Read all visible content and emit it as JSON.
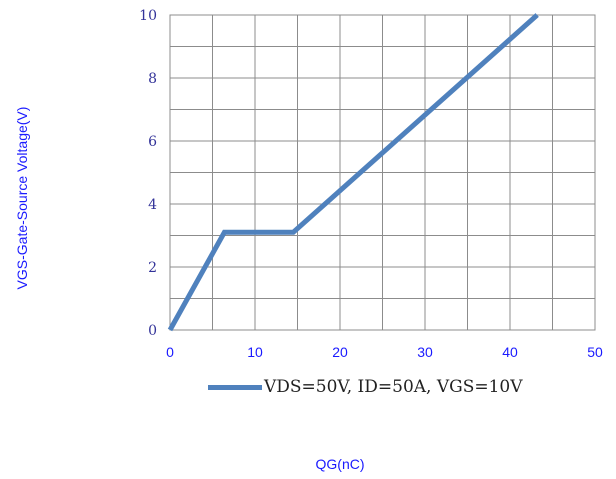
{
  "chart_data": {
    "type": "line",
    "xlabel": "QG(nC)",
    "ylabel": "VGS-Gate-Source Voltage(V)",
    "xlim": [
      0,
      50
    ],
    "ylim": [
      0,
      10
    ],
    "xticks": [
      0,
      10,
      20,
      30,
      40,
      50
    ],
    "yticks": [
      0,
      2,
      4,
      6,
      8,
      10
    ],
    "grid": true,
    "legend_position": "bottom",
    "series": [
      {
        "name": "VDS=50V, ID=50A, VGS=10V",
        "color": "#4f81bd",
        "x": [
          0,
          6.4,
          14.5,
          43.2
        ],
        "y": [
          0,
          3.1,
          3.1,
          10
        ]
      }
    ],
    "colors": {
      "axis_tick_labels": "#1a1aff",
      "y_tick_labels": "#333399",
      "grid": "#8c8c8c"
    }
  }
}
